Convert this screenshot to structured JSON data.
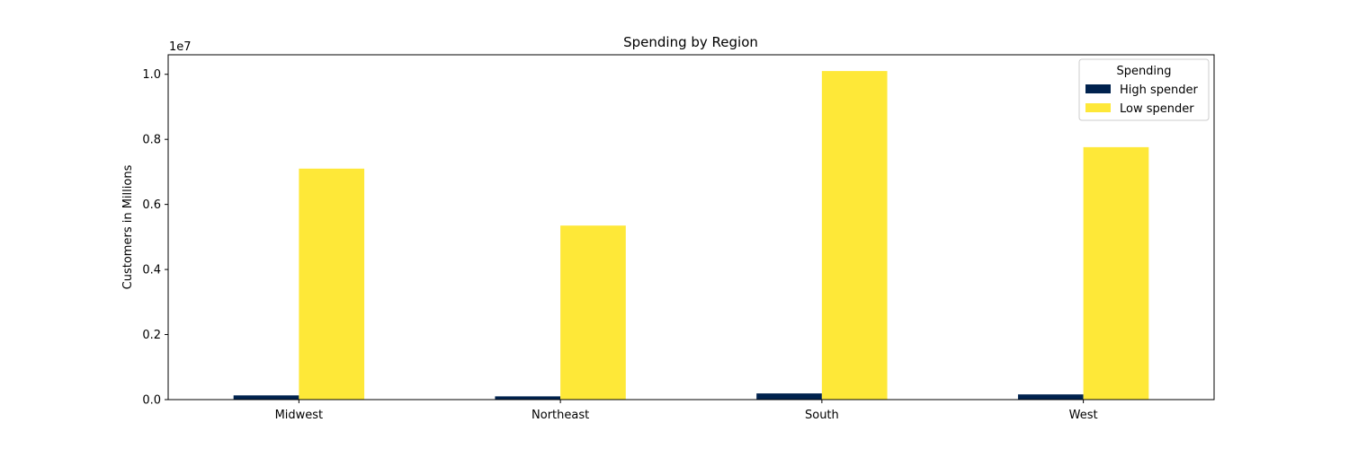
{
  "chart_data": {
    "type": "bar",
    "title": "Spending by Region",
    "xlabel": "",
    "ylabel": "Customers in Millions",
    "offset_text": "1e7",
    "categories": [
      "Midwest",
      "Northeast",
      "South",
      "West"
    ],
    "series": [
      {
        "name": "High spender",
        "color": "#00224e",
        "values": [
          130000,
          100000,
          190000,
          160000
        ]
      },
      {
        "name": "Low spender",
        "color": "#fee838",
        "values": [
          7100000,
          5350000,
          10100000,
          7760000
        ]
      }
    ],
    "ylim": [
      0,
      10600000
    ],
    "yticks": [
      0,
      2000000,
      4000000,
      6000000,
      8000000,
      10000000
    ],
    "ytick_labels": [
      "0.0",
      "0.2",
      "0.4",
      "0.6",
      "0.8",
      "1.0"
    ],
    "legend": {
      "title": "Spending",
      "position": "top-right"
    },
    "grid": false
  }
}
